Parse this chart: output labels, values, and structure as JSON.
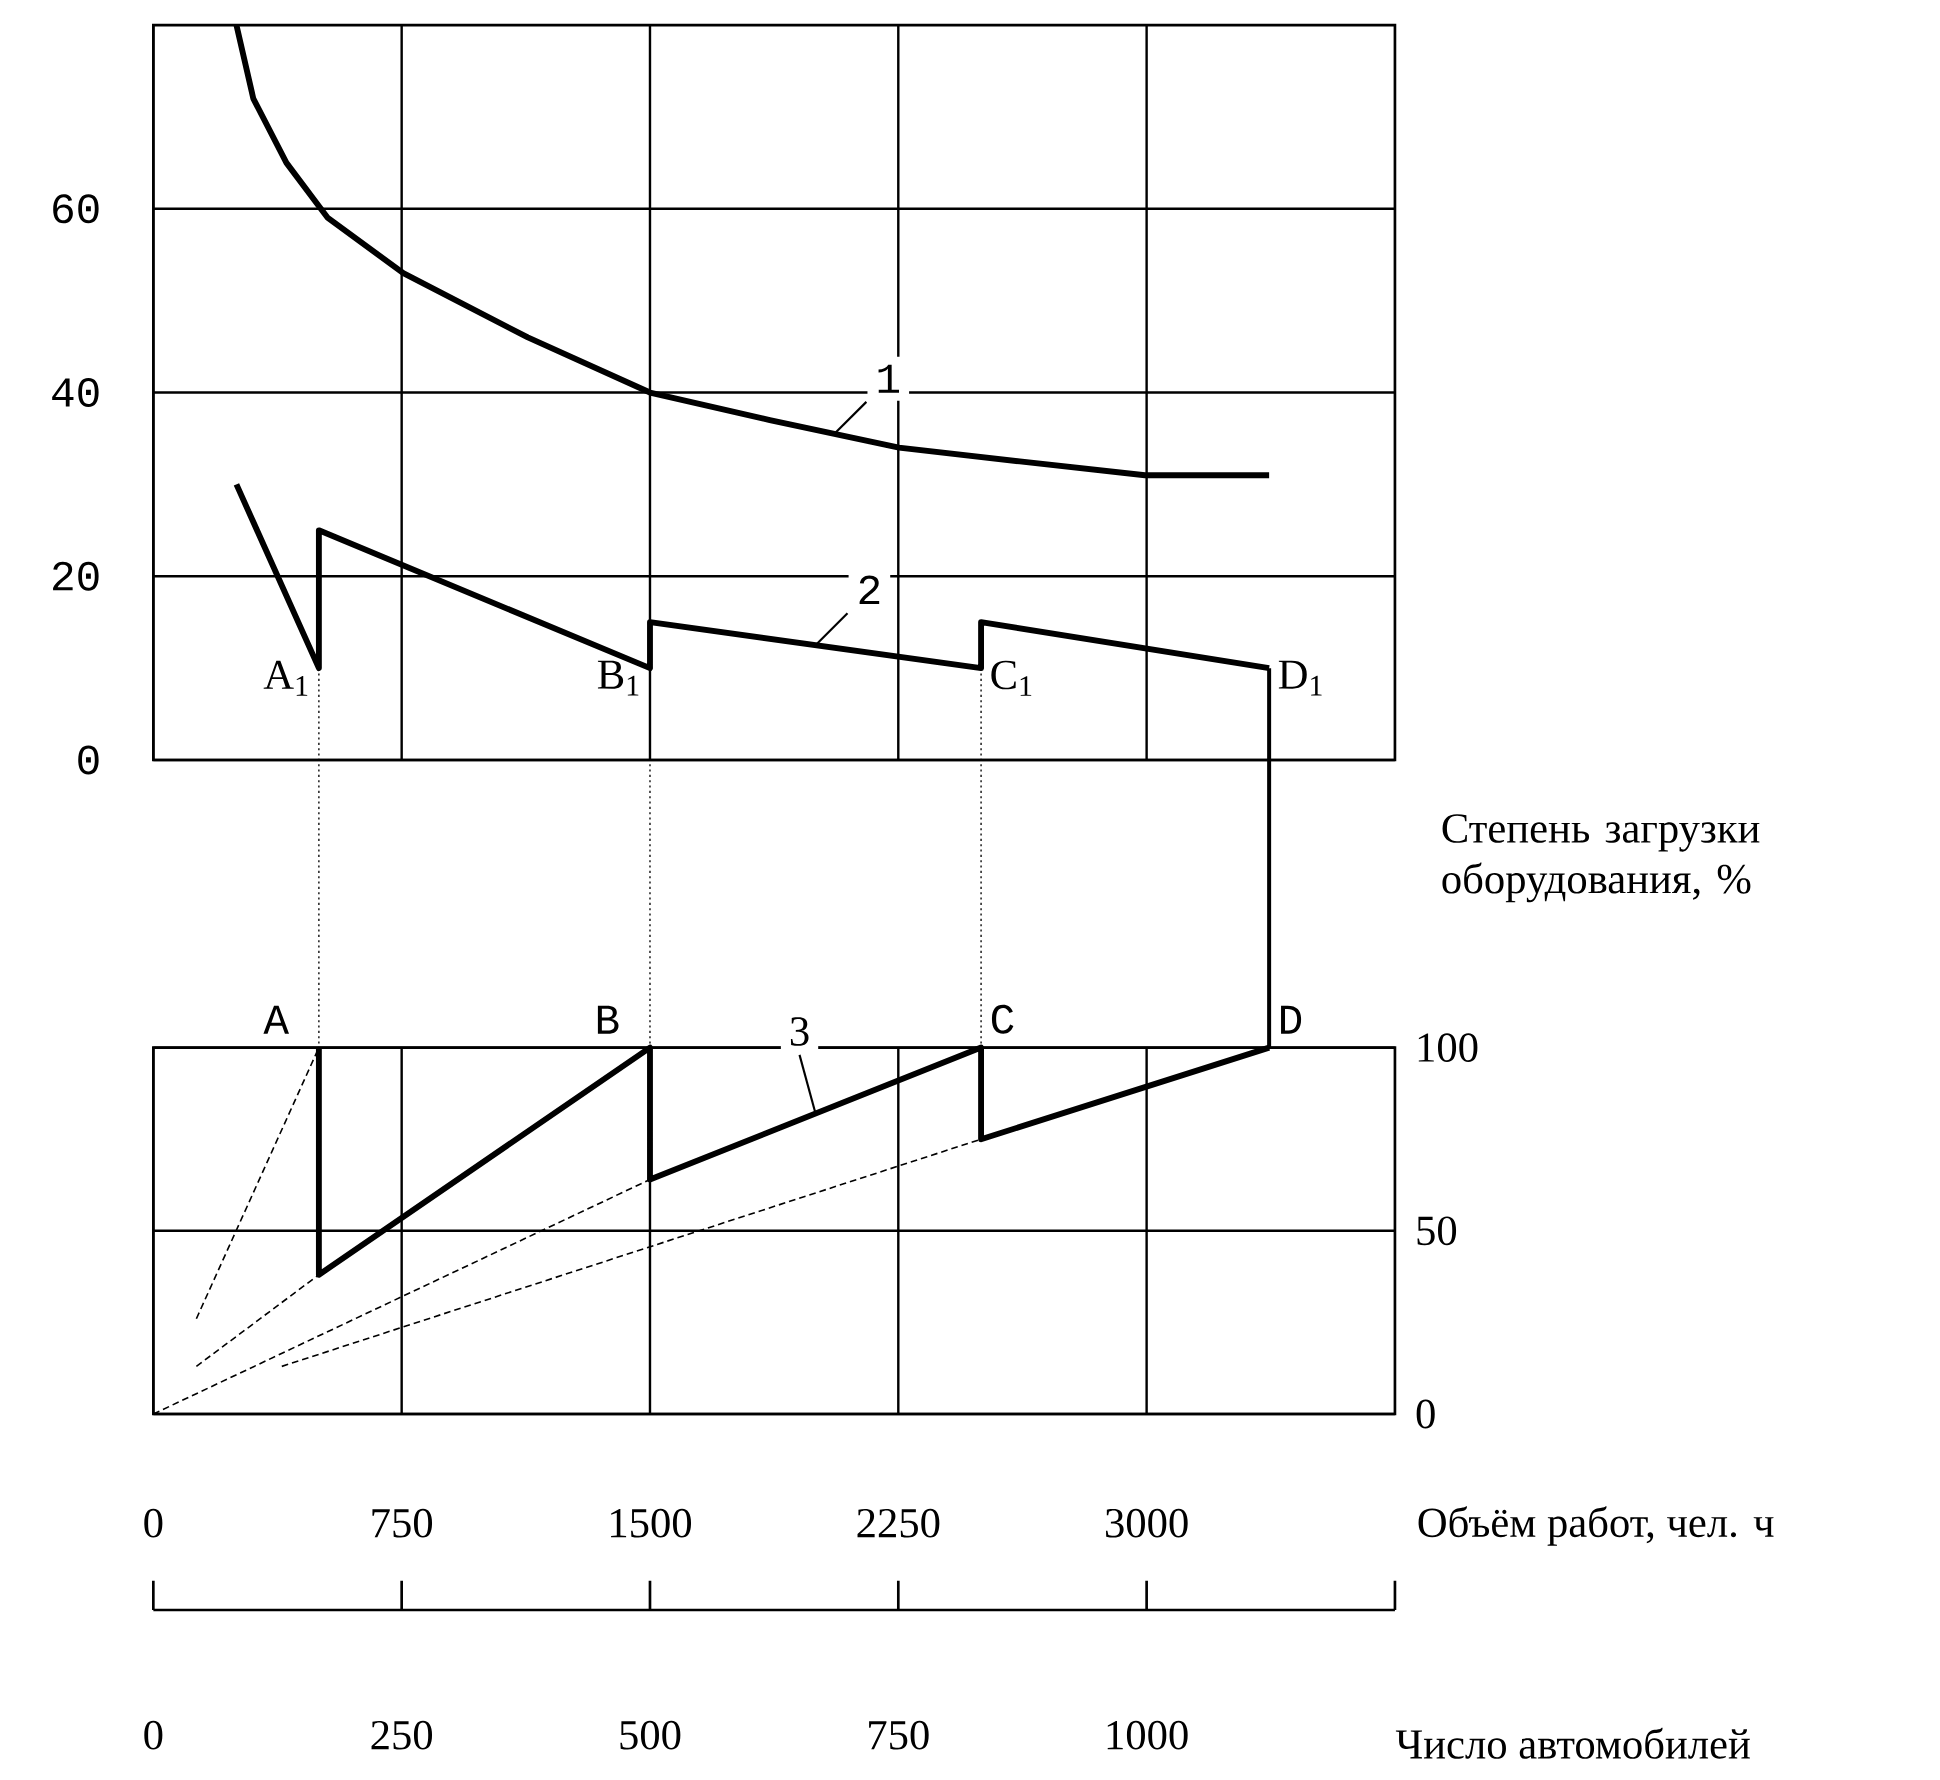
{
  "chart_data": [
    {
      "type": "line",
      "xlim": [
        0,
        3750
      ],
      "xticks": [
        0,
        750,
        1500,
        2250,
        3000
      ],
      "ylim": [
        0,
        80
      ],
      "yticks": [
        0,
        20,
        40,
        60
      ],
      "grid": true,
      "tick_labels": "y",
      "series": [
        {
          "name": "1",
          "color": "#000000",
          "x": [
            251,
            302,
            402,
            527,
            755,
            1131,
            1500,
            1862,
            2252,
            2617,
            2995,
            3370
          ],
          "values": [
            80,
            72,
            65,
            59,
            53,
            46,
            40,
            37,
            34,
            32.5,
            31,
            31
          ]
        },
        {
          "name": "2",
          "color": "#000000",
          "x": [
            251,
            500,
            500,
            1500,
            1500,
            2500,
            2500,
            3370
          ],
          "values": [
            30,
            10,
            25,
            10,
            15,
            10,
            15,
            10
          ]
        }
      ],
      "ref_lines": [
        {
          "axis": "x",
          "value": 500,
          "line_style": "dotted"
        },
        {
          "axis": "x",
          "value": 1500,
          "line_style": "dotted"
        },
        {
          "axis": "x",
          "value": 2500,
          "line_style": "dotted"
        },
        {
          "axis": "x",
          "value": 3370,
          "line_style": "solid"
        }
      ],
      "annotations": [
        {
          "text": "A$_{1}$",
          "x": 500,
          "y": 10
        },
        {
          "text": "B$_{1}$",
          "x": 1500,
          "y": 10
        },
        {
          "text": "C$_{1}$",
          "x": 2500,
          "y": 10
        },
        {
          "text": "D$_{1}$",
          "x": 3370,
          "y": 10
        }
      ]
    },
    {
      "type": "line",
      "xlabel": "Объём работ, чел. ч",
      "ylabel": "Степень загрузки оборудования, %",
      "x2label": "Число автомобилей",
      "xlim": [
        0,
        3750
      ],
      "xticks": [
        0,
        750,
        1500,
        2250,
        3000
      ],
      "x2lim": [
        0,
        1250
      ],
      "x2ticks": [
        0,
        250,
        500,
        750,
        1000,
        {
          "value": 1250,
          "label": null
        }
      ],
      "ylim": [
        0,
        100
      ],
      "yticks": [
        0,
        50,
        100
      ],
      "grid": true,
      "series": [
        {
          "name": "3",
          "color": "#000000",
          "x": [
            500,
            500,
            1500,
            1500,
            2500,
            2500,
            3370
          ],
          "values": [
            100,
            38,
            100,
            64,
            100,
            75,
            100
          ]
        },
        {
          "color": "#000000",
          "line_style": "dashed",
          "x": [
            130,
            500
          ],
          "values": [
            26,
            100
          ]
        },
        {
          "color": "#000000",
          "line_style": "dashed",
          "x": [
            130,
            500
          ],
          "values": [
            13,
            38
          ]
        },
        {
          "color": "#000000",
          "line_style": "dashed",
          "x": [
            0,
            1500
          ],
          "values": [
            0,
            64
          ]
        },
        {
          "color": "#000000",
          "line_style": "dashed",
          "x": [
            388,
            2500
          ],
          "values": [
            13,
            75
          ]
        }
      ],
      "annotations": [
        {
          "text": "A",
          "x": 500,
          "y": 100
        },
        {
          "text": "B",
          "x": 1500,
          "y": 100
        },
        {
          "text": "C",
          "x": 2500,
          "y": 100
        },
        {
          "text": "D",
          "x": 3370,
          "y": 100
        }
      ]
    }
  ]
}
